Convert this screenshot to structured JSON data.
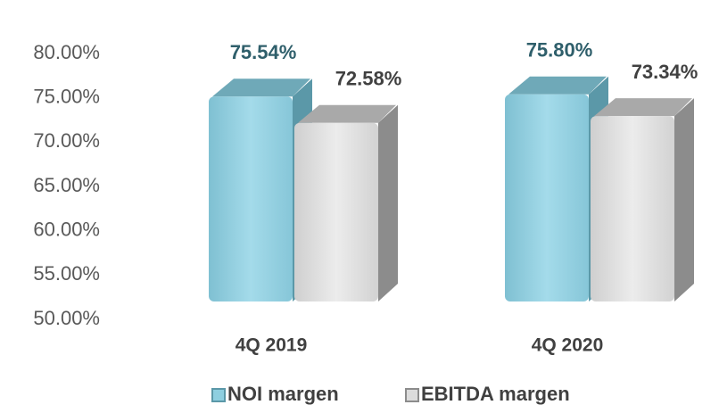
{
  "chart_data": {
    "type": "bar3d",
    "categories": [
      "4Q 2019",
      "4Q 2020"
    ],
    "series": [
      {
        "name": "NOI margen",
        "color": "#8ecfe0",
        "values": [
          75.54,
          75.8
        ],
        "value_labels": [
          "75.54%",
          "75.80%"
        ]
      },
      {
        "name": "EBITDA margen",
        "color": "#dcdcdc",
        "values": [
          72.58,
          73.34
        ],
        "value_labels": [
          "72.58%",
          "73.34%"
        ]
      }
    ],
    "ylim": [
      50,
      80
    ],
    "yticks": [
      {
        "value": 50,
        "label": "50.00%"
      },
      {
        "value": 55,
        "label": "55.00%"
      },
      {
        "value": 60,
        "label": "60.00%"
      },
      {
        "value": 65,
        "label": "65.00%"
      },
      {
        "value": 70,
        "label": "70.00%"
      },
      {
        "value": 75,
        "label": "75.00%"
      },
      {
        "value": 80,
        "label": "80.00%"
      }
    ],
    "legend": "bottom"
  }
}
